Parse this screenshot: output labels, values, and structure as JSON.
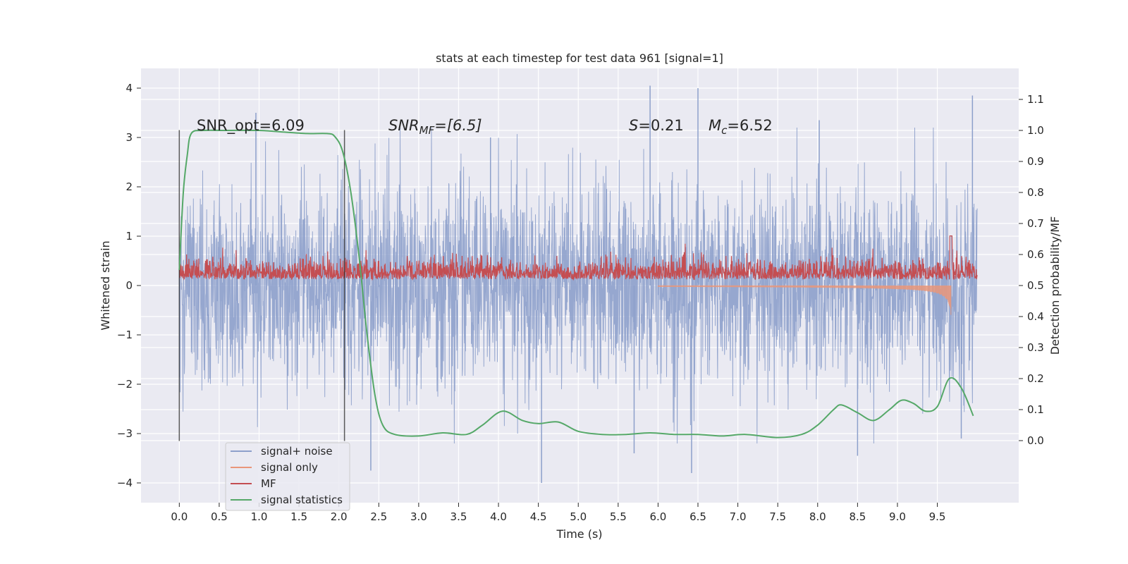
{
  "chart_data": {
    "type": "line",
    "title": "stats at each timestep for test data 961 [signal=1]",
    "xlabel": "Time (s)",
    "ylabel_left": "Whitened strain",
    "ylabel_right": "Detection probability/MF",
    "xlim": [
      -0.48,
      10.52
    ],
    "ylim_left": [
      -4.4,
      4.4
    ],
    "ylim_right": [
      -0.2,
      1.2
    ],
    "x_ticks": [
      0.0,
      0.5,
      1.0,
      1.5,
      2.0,
      2.5,
      3.0,
      3.5,
      4.0,
      4.5,
      5.0,
      5.5,
      6.0,
      6.5,
      7.0,
      7.5,
      8.0,
      8.5,
      9.0,
      9.5
    ],
    "x_tick_labels": [
      "0.0",
      "0.5",
      "1.0",
      "1.5",
      "2.0",
      "2.5",
      "3.0",
      "3.5",
      "4.0",
      "4.5",
      "5.0",
      "5.5",
      "6.0",
      "6.5",
      "7.0",
      "7.5",
      "8.0",
      "8.5",
      "9.0",
      "9.5"
    ],
    "y_left_ticks": [
      -4,
      -3,
      -2,
      -1,
      0,
      1,
      2,
      3,
      4
    ],
    "y_left_tick_labels": [
      "−4",
      "−3",
      "−2",
      "−1",
      "0",
      "1",
      "2",
      "3",
      "4"
    ],
    "y_right_ticks": [
      0.0,
      0.1,
      0.2,
      0.3,
      0.4,
      0.5,
      0.6,
      0.7,
      0.8,
      0.9,
      1.0,
      1.1
    ],
    "y_right_tick_labels": [
      "0.0",
      "0.1",
      "0.2",
      "0.3",
      "0.4",
      "0.5",
      "0.6",
      "0.7",
      "0.8",
      "0.9",
      "1.0",
      "1.1"
    ],
    "grid": true,
    "legend_position": "lower-left",
    "annotations": {
      "snr_opt": "SNR_opt=6.09",
      "snr_mf_base": "SNR",
      "snr_mf_sub": "MF",
      "snr_mf_rest": "=[6.5]",
      "s_base": "S",
      "s_rest": "=0.21",
      "mc_base": "M",
      "mc_sub": "c",
      "mc_rest": "=6.52"
    },
    "vlines": [
      {
        "x": 0.0,
        "ymin": -3.15,
        "ymax": 3.15
      },
      {
        "x": 2.07,
        "ymin": -3.15,
        "ymax": 3.15
      }
    ],
    "series": [
      {
        "name": "signal+ noise",
        "color": "#8da0cb",
        "axis": "left",
        "kind": "noise",
        "x_range": [
          0.0,
          10.0
        ],
        "amplitude_std": 1.0,
        "peak_extremes": [
          {
            "x": 0.96,
            "y": 3.5
          },
          {
            "x": 5.9,
            "y": 4.05
          },
          {
            "x": 6.5,
            "y": 4.0
          },
          {
            "x": 8.02,
            "y": 3.35
          },
          {
            "x": 9.94,
            "y": 3.85
          },
          {
            "x": 4.54,
            "y": -4.0
          },
          {
            "x": 6.42,
            "y": -3.8
          },
          {
            "x": 2.4,
            "y": -3.75
          },
          {
            "x": 8.5,
            "y": -3.45
          },
          {
            "x": 9.8,
            "y": -3.1
          },
          {
            "x": 5.7,
            "y": -3.4
          },
          {
            "x": 3.9,
            "y": 3.0
          }
        ]
      },
      {
        "name": "signal only",
        "color": "#e9967a",
        "axis": "left",
        "kind": "chirp",
        "x_range": [
          6.0,
          9.67
        ],
        "peak_x": 9.67,
        "peak_y": -0.85
      },
      {
        "name": "MF",
        "color": "#c44e52",
        "axis": "right",
        "kind": "noise",
        "x_range": [
          0.0,
          10.0
        ],
        "baseline": 0.52,
        "amplitude": 0.03,
        "spike": {
          "x": 9.67,
          "y": 0.66
        }
      },
      {
        "name": "signal statistics",
        "color": "#55a868",
        "axis": "right",
        "kind": "curve",
        "x": [
          0.0,
          0.05,
          0.1,
          0.15,
          0.3,
          0.6,
          1.0,
          1.3,
          1.6,
          1.85,
          1.95,
          2.05,
          2.15,
          2.25,
          2.35,
          2.45,
          2.55,
          2.7,
          3.0,
          3.3,
          3.6,
          3.8,
          4.05,
          4.3,
          4.5,
          4.75,
          5.0,
          5.3,
          5.6,
          5.9,
          6.2,
          6.5,
          6.8,
          7.1,
          7.5,
          7.8,
          8.0,
          8.2,
          8.3,
          8.5,
          8.7,
          8.9,
          9.05,
          9.2,
          9.35,
          9.5,
          9.65,
          9.8,
          9.95
        ],
        "y": [
          0.55,
          0.8,
          0.92,
          0.99,
          1.0,
          1.0,
          1.0,
          0.995,
          0.99,
          0.99,
          0.98,
          0.93,
          0.8,
          0.6,
          0.35,
          0.15,
          0.05,
          0.02,
          0.015,
          0.025,
          0.02,
          0.05,
          0.095,
          0.065,
          0.055,
          0.06,
          0.03,
          0.02,
          0.02,
          0.025,
          0.02,
          0.02,
          0.015,
          0.02,
          0.01,
          0.02,
          0.05,
          0.1,
          0.115,
          0.09,
          0.065,
          0.1,
          0.13,
          0.12,
          0.095,
          0.11,
          0.2,
          0.17,
          0.08
        ]
      }
    ]
  }
}
